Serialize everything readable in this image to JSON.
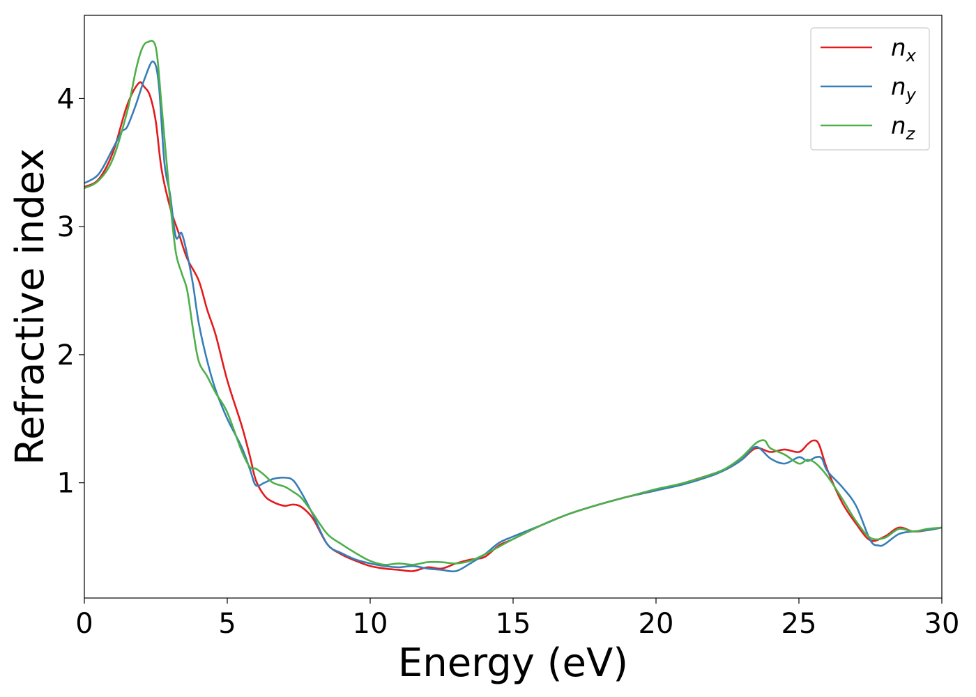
{
  "chart_data": {
    "type": "line",
    "xlabel": "Energy (eV)",
    "ylabel": "Refractive index",
    "xlim": [
      0,
      30
    ],
    "ylim": [
      0.1,
      4.65
    ],
    "xticks": [
      0,
      5,
      10,
      15,
      20,
      25,
      30
    ],
    "yticks": [
      1,
      2,
      3,
      4
    ],
    "grid": false,
    "legend_position": "top-right",
    "series": [
      {
        "name": "n",
        "subscript": "x",
        "color": "#e41a1c",
        "x": [
          0,
          0.5,
          1.0,
          1.5,
          1.9,
          2.1,
          2.3,
          2.5,
          2.7,
          3.0,
          3.3,
          3.6,
          4.0,
          4.3,
          4.6,
          5.0,
          5.5,
          5.8,
          6.0,
          6.3,
          6.6,
          7.0,
          7.3,
          7.6,
          8.0,
          8.5,
          9.0,
          9.5,
          10.0,
          10.5,
          11.0,
          11.5,
          12.0,
          12.5,
          13.0,
          13.5,
          14.0,
          14.5,
          15.0,
          16.0,
          17.0,
          18.0,
          19.0,
          20.0,
          21.0,
          22.0,
          22.5,
          23.0,
          23.5,
          24.0,
          24.5,
          25.0,
          25.3,
          25.5,
          25.7,
          26.0,
          26.5,
          27.0,
          27.5,
          28.0,
          28.5,
          29.0,
          29.5,
          30.0
        ],
        "y": [
          3.31,
          3.37,
          3.58,
          3.95,
          4.12,
          4.09,
          4.02,
          3.82,
          3.45,
          3.15,
          2.95,
          2.75,
          2.58,
          2.35,
          2.15,
          1.8,
          1.45,
          1.2,
          1.02,
          0.9,
          0.85,
          0.82,
          0.83,
          0.81,
          0.72,
          0.52,
          0.44,
          0.39,
          0.35,
          0.33,
          0.32,
          0.31,
          0.34,
          0.33,
          0.37,
          0.4,
          0.42,
          0.51,
          0.56,
          0.67,
          0.76,
          0.83,
          0.89,
          0.94,
          1.0,
          1.07,
          1.11,
          1.18,
          1.27,
          1.24,
          1.26,
          1.24,
          1.3,
          1.33,
          1.3,
          1.1,
          0.85,
          0.68,
          0.55,
          0.58,
          0.65,
          0.62,
          0.63,
          0.65
        ]
      },
      {
        "name": "n",
        "subscript": "y",
        "color": "#377eb8",
        "x": [
          0,
          0.5,
          1.0,
          1.3,
          1.5,
          1.8,
          2.1,
          2.4,
          2.6,
          2.8,
          3.0,
          3.2,
          3.4,
          3.6,
          3.8,
          4.0,
          4.3,
          4.6,
          5.0,
          5.5,
          5.8,
          6.0,
          6.3,
          6.6,
          7.0,
          7.3,
          7.6,
          8.0,
          8.5,
          9.0,
          9.5,
          10.0,
          10.5,
          11.0,
          11.5,
          12.0,
          12.5,
          13.0,
          13.5,
          14.0,
          14.5,
          15.0,
          16.0,
          17.0,
          18.0,
          19.0,
          20.0,
          21.0,
          22.0,
          22.5,
          23.0,
          23.5,
          24.0,
          24.5,
          25.0,
          25.3,
          25.6,
          25.8,
          26.0,
          26.5,
          27.0,
          27.5,
          27.8,
          28.0,
          28.5,
          29.0,
          29.5,
          30.0
        ],
        "y": [
          3.34,
          3.41,
          3.61,
          3.74,
          3.78,
          3.95,
          4.15,
          4.29,
          4.12,
          3.5,
          3.25,
          2.92,
          2.95,
          2.78,
          2.55,
          2.25,
          1.95,
          1.72,
          1.5,
          1.28,
          1.1,
          0.98,
          1.0,
          1.03,
          1.04,
          1.02,
          0.92,
          0.75,
          0.52,
          0.45,
          0.4,
          0.37,
          0.35,
          0.34,
          0.35,
          0.33,
          0.32,
          0.31,
          0.37,
          0.44,
          0.53,
          0.58,
          0.67,
          0.76,
          0.83,
          0.89,
          0.94,
          0.99,
          1.06,
          1.11,
          1.18,
          1.28,
          1.19,
          1.15,
          1.2,
          1.17,
          1.2,
          1.19,
          1.09,
          0.97,
          0.82,
          0.55,
          0.51,
          0.52,
          0.6,
          0.62,
          0.63,
          0.65
        ]
      },
      {
        "name": "n",
        "subscript": "z",
        "color": "#4daf4a",
        "x": [
          0,
          0.5,
          1.0,
          1.5,
          1.8,
          2.0,
          2.2,
          2.5,
          2.7,
          3.0,
          3.2,
          3.4,
          3.6,
          3.8,
          4.0,
          4.3,
          4.6,
          5.0,
          5.5,
          5.8,
          6.0,
          6.3,
          6.6,
          7.0,
          7.3,
          7.6,
          8.0,
          8.5,
          9.0,
          9.5,
          10.0,
          10.5,
          11.0,
          11.5,
          12.0,
          12.5,
          13.0,
          13.5,
          14.0,
          14.5,
          15.0,
          16.0,
          17.0,
          18.0,
          19.0,
          20.0,
          21.0,
          22.0,
          22.5,
          23.0,
          23.5,
          23.8,
          24.0,
          24.5,
          25.0,
          25.3,
          25.6,
          26.0,
          26.5,
          27.0,
          27.5,
          28.0,
          28.5,
          29.0,
          29.5,
          30.0
        ],
        "y": [
          3.3,
          3.36,
          3.53,
          3.9,
          4.22,
          4.38,
          4.44,
          4.4,
          3.95,
          3.2,
          2.8,
          2.64,
          2.5,
          2.2,
          1.95,
          1.83,
          1.7,
          1.55,
          1.25,
          1.12,
          1.11,
          1.06,
          1.0,
          0.97,
          0.93,
          0.88,
          0.76,
          0.6,
          0.52,
          0.45,
          0.39,
          0.36,
          0.37,
          0.36,
          0.38,
          0.38,
          0.37,
          0.39,
          0.44,
          0.5,
          0.56,
          0.67,
          0.76,
          0.83,
          0.89,
          0.95,
          1.0,
          1.07,
          1.12,
          1.2,
          1.31,
          1.33,
          1.27,
          1.22,
          1.15,
          1.18,
          1.15,
          1.05,
          0.88,
          0.7,
          0.57,
          0.57,
          0.64,
          0.62,
          0.64,
          0.65
        ]
      }
    ]
  }
}
